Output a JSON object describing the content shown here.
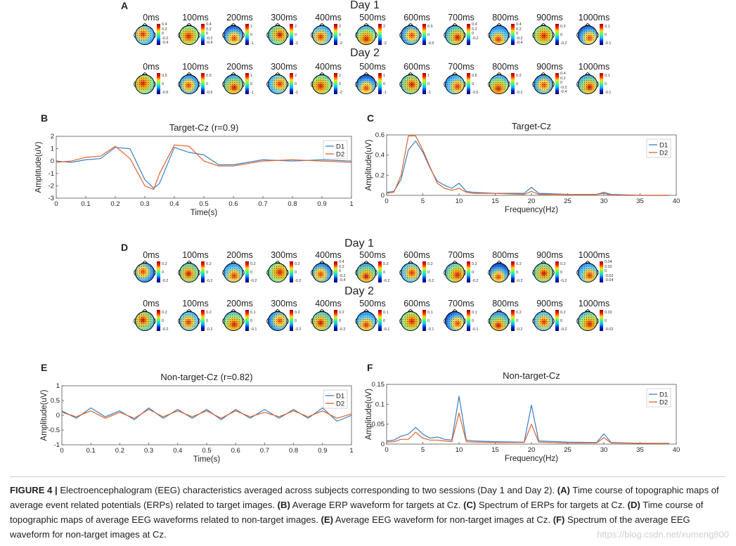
{
  "panels": {
    "A": {
      "letter": "A",
      "day1": "Day 1",
      "day2": "Day 2",
      "times": [
        "0ms",
        "100ms",
        "200ms",
        "300ms",
        "400ms",
        "500ms",
        "600ms",
        "700ms",
        "800ms",
        "900ms",
        "1000ms"
      ],
      "day1_ticks": [
        [
          "0.4",
          "0.2",
          "0",
          "-0.2",
          "-0.4"
        ],
        [
          "0.4",
          "0.2",
          "0",
          "-0.2",
          "-0.4"
        ],
        [
          "1",
          "0",
          "-1"
        ],
        [
          "2",
          "0",
          "-2"
        ],
        [
          "2",
          "0",
          "-2"
        ],
        [
          "2",
          "",
          "-2"
        ],
        [
          "0.5",
          "0",
          "-0.5"
        ],
        [
          "0.4",
          "0.2",
          "0",
          "-0.2"
        ],
        [
          "0.4",
          "0.2",
          "0",
          "-0.2",
          "-0.4"
        ],
        [
          "0.2",
          "0",
          "-0.2"
        ],
        [
          "0.1",
          "0",
          "-0.1"
        ]
      ],
      "day2_ticks": [
        [
          "0.5",
          "0",
          "-0.5"
        ],
        [
          "0.5",
          "0",
          "-0.5"
        ],
        [
          "1",
          "0",
          "-1"
        ],
        [
          "2",
          "0",
          "-2"
        ],
        [
          "2",
          "0",
          "-2"
        ],
        [
          "1",
          "0",
          "-1"
        ],
        [
          "1",
          "0",
          "-1"
        ],
        [
          "0.5",
          "0",
          "-0.5"
        ],
        [
          "0.2",
          "0",
          "-0.2"
        ],
        [
          "0.4",
          "0.2",
          "0",
          "-0.2",
          "-0.4"
        ],
        [
          "0.1",
          "0",
          "-0.1"
        ]
      ]
    },
    "D": {
      "letter": "D",
      "day1": "Day 1",
      "day2": "Day 2",
      "times": [
        "0ms",
        "100ms",
        "200ms",
        "300ms",
        "400ms",
        "500ms",
        "600ms",
        "700ms",
        "800ms",
        "900ms",
        "1000ms"
      ],
      "day1_ticks": [
        [
          "0.2",
          "0",
          "-0.2"
        ],
        [
          "0.2",
          "0",
          "-0.2"
        ],
        [
          "0.2",
          "0",
          "-0.2"
        ],
        [
          "0.2",
          "0",
          "-0.2"
        ],
        [
          "0.4",
          "0.2",
          "0",
          "-0.2",
          "-0.4"
        ],
        [
          "0.2",
          "0",
          "-0.2"
        ],
        [
          "0.2",
          "0",
          "-0.2"
        ],
        [
          "0.2",
          "0",
          "-0.2"
        ],
        [
          "0.2",
          "0",
          "-0.2"
        ],
        [
          "0.2",
          "0",
          "-0.2"
        ],
        [
          "0.04",
          "0.02",
          "0",
          "-0.02",
          "-0.04"
        ]
      ],
      "day2_ticks": [
        [
          "0.2",
          "0",
          "-0.2"
        ],
        [
          "0.2",
          "0",
          "-0.2"
        ],
        [
          "0.1",
          "0",
          "-0.1"
        ],
        [
          "0.2",
          "0",
          "-0.2"
        ],
        [
          "0.2",
          "0",
          "-0.2"
        ],
        [
          "0.1",
          "0",
          "-0.1"
        ],
        [
          "0.1",
          "0",
          "-0.1"
        ],
        [
          "0.1",
          "0",
          "-0.1"
        ],
        [
          "0.2",
          "0",
          "-0.2"
        ],
        [
          "0.2",
          "0",
          "-0.2"
        ],
        [
          "0.02",
          "0",
          "-0.02"
        ]
      ]
    }
  },
  "chart_data": [
    {
      "id": "B",
      "type": "line",
      "letter": "B",
      "title": "Target-Cz (r=0.9)",
      "xlabel": "Time(s)",
      "ylabel": "Amplitude(uV)",
      "xlim": [
        0,
        1
      ],
      "ylim": [
        -3,
        2
      ],
      "xticks": [
        0,
        0.1,
        0.2,
        0.3,
        0.4,
        0.5,
        0.6,
        0.7,
        0.8,
        0.9,
        1
      ],
      "yticks": [
        -3,
        -2,
        -1,
        0,
        1,
        2
      ],
      "legend": [
        "D1",
        "D2"
      ],
      "legend_position": "top-right",
      "x": [
        0,
        0.05,
        0.1,
        0.15,
        0.2,
        0.25,
        0.3,
        0.33,
        0.35,
        0.4,
        0.45,
        0.5,
        0.55,
        0.6,
        0.7,
        0.8,
        0.9,
        1
      ],
      "series": [
        {
          "name": "D1",
          "values": [
            0,
            -0.1,
            0.1,
            0.2,
            1.1,
            1.0,
            -1.5,
            -2.2,
            -1.8,
            1.1,
            0.7,
            0.5,
            -0.3,
            -0.3,
            0.1,
            0.0,
            0.1,
            0.0
          ]
        },
        {
          "name": "D2",
          "values": [
            -0.1,
            0.0,
            0.3,
            0.4,
            1.2,
            0.2,
            -2.0,
            -2.3,
            -1.0,
            1.3,
            1.2,
            0.0,
            -0.4,
            -0.4,
            0.0,
            0.1,
            0.0,
            -0.1
          ]
        }
      ]
    },
    {
      "id": "C",
      "type": "line",
      "letter": "C",
      "title": "Target-Cz",
      "xlabel": "Frequency(Hz)",
      "ylabel": "Amplitude(uV)",
      "xlim": [
        0,
        40
      ],
      "ylim": [
        0,
        0.6
      ],
      "xticks": [
        0,
        5,
        10,
        15,
        20,
        25,
        30,
        35,
        40
      ],
      "yticks": [
        0,
        0.2,
        0.4,
        0.6
      ],
      "legend": [
        "D1",
        "D2"
      ],
      "legend_position": "top-right",
      "x": [
        0,
        1,
        2,
        3,
        4,
        5,
        6,
        7,
        8,
        9,
        10,
        11,
        12,
        15,
        19,
        20,
        21,
        25,
        29,
        30,
        31,
        35,
        39
      ],
      "series": [
        {
          "name": "D1",
          "values": [
            0.03,
            0.04,
            0.16,
            0.45,
            0.54,
            0.43,
            0.27,
            0.14,
            0.1,
            0.07,
            0.12,
            0.04,
            0.03,
            0.02,
            0.02,
            0.08,
            0.02,
            0.01,
            0.01,
            0.03,
            0.01,
            0.0,
            0.0
          ]
        },
        {
          "name": "D2",
          "values": [
            0.02,
            0.03,
            0.2,
            0.59,
            0.59,
            0.45,
            0.28,
            0.12,
            0.07,
            0.05,
            0.07,
            0.03,
            0.02,
            0.02,
            0.01,
            0.04,
            0.01,
            0.01,
            0.01,
            0.02,
            0.0,
            0.0,
            0.0
          ]
        }
      ]
    },
    {
      "id": "E",
      "type": "line",
      "letter": "E",
      "title": "Non-target-Cz (r=0.82)",
      "xlabel": "Time(s)",
      "ylabel": "Amplitude(uV)",
      "xlim": [
        0,
        1
      ],
      "ylim": [
        -1,
        1
      ],
      "xticks": [
        0,
        0.1,
        0.2,
        0.3,
        0.4,
        0.5,
        0.6,
        0.7,
        0.8,
        0.9,
        1
      ],
      "yticks": [
        -1,
        -0.5,
        0,
        0.5,
        1
      ],
      "legend": [
        "D1",
        "D2"
      ],
      "legend_position": "top-right",
      "x": [
        0,
        0.05,
        0.1,
        0.15,
        0.2,
        0.25,
        0.3,
        0.35,
        0.4,
        0.45,
        0.5,
        0.55,
        0.6,
        0.65,
        0.7,
        0.75,
        0.8,
        0.85,
        0.9,
        0.95,
        1
      ],
      "series": [
        {
          "name": "D1",
          "values": [
            0.15,
            -0.1,
            0.25,
            -0.05,
            0.15,
            -0.15,
            0.25,
            -0.1,
            0.2,
            -0.1,
            0.2,
            -0.15,
            0.2,
            -0.1,
            0.2,
            -0.1,
            0.2,
            -0.1,
            0.25,
            -0.2,
            0.0
          ]
        },
        {
          "name": "D2",
          "values": [
            0.1,
            -0.05,
            0.15,
            -0.1,
            0.1,
            -0.1,
            0.2,
            -0.05,
            0.15,
            -0.05,
            0.15,
            -0.1,
            0.15,
            -0.05,
            0.1,
            -0.05,
            0.15,
            -0.05,
            0.15,
            -0.1,
            0.05
          ]
        }
      ]
    },
    {
      "id": "F",
      "type": "line",
      "letter": "F",
      "title": "Non-target-Cz",
      "xlabel": "Frequency(Hz)",
      "ylabel": "Amplitude(uV)",
      "xlim": [
        0,
        40
      ],
      "ylim": [
        0,
        0.15
      ],
      "xticks": [
        0,
        5,
        10,
        15,
        20,
        25,
        30,
        35,
        40
      ],
      "yticks": [
        0,
        0.05,
        0.1,
        0.15
      ],
      "legend": [
        "D1",
        "D2"
      ],
      "legend_position": "top-right",
      "x": [
        0,
        1,
        2,
        3,
        4,
        5,
        6,
        7,
        8,
        9,
        10,
        11,
        12,
        15,
        19,
        20,
        21,
        25,
        29,
        30,
        31,
        35,
        39
      ],
      "series": [
        {
          "name": "D1",
          "values": [
            0.008,
            0.01,
            0.02,
            0.025,
            0.042,
            0.025,
            0.015,
            0.018,
            0.012,
            0.01,
            0.12,
            0.01,
            0.008,
            0.006,
            0.005,
            0.098,
            0.008,
            0.005,
            0.004,
            0.026,
            0.004,
            0.002,
            0.002
          ]
        },
        {
          "name": "D2",
          "values": [
            0.005,
            0.006,
            0.012,
            0.012,
            0.03,
            0.015,
            0.01,
            0.01,
            0.008,
            0.006,
            0.078,
            0.006,
            0.005,
            0.004,
            0.004,
            0.05,
            0.005,
            0.003,
            0.003,
            0.016,
            0.003,
            0.002,
            0.001
          ]
        }
      ]
    }
  ],
  "caption": {
    "label": "FIGURE 4 |",
    "intro": " Electroencephalogram (EEG) characteristics averaged across subjects corresponding to two sessions (Day 1 and Day 2). ",
    "a_l": "(A)",
    "a_t": " Time course of topographic maps of average event related potentials (ERPs) related to target images. ",
    "b_l": "(B)",
    "b_t": " Average ERP waveform for targets at Cz. ",
    "c_l": "(C)",
    "c_t": " Spectrum of ERPs for targets at Cz. ",
    "d_l": "(D)",
    "d_t": " Time course of topographic maps of average EEG waveforms related to non-target images. ",
    "e_l": "(E)",
    "e_t": " Average EEG waveform for non-target images at Cz. ",
    "f_l": "(F)",
    "f_t": " Spectrum of the average EEG waveform for non-target images at Cz."
  },
  "watermark": "https://blog.csdn.net/xumeng800",
  "colors": {
    "d1": "#3a7fc6",
    "d2": "#e0622c"
  }
}
